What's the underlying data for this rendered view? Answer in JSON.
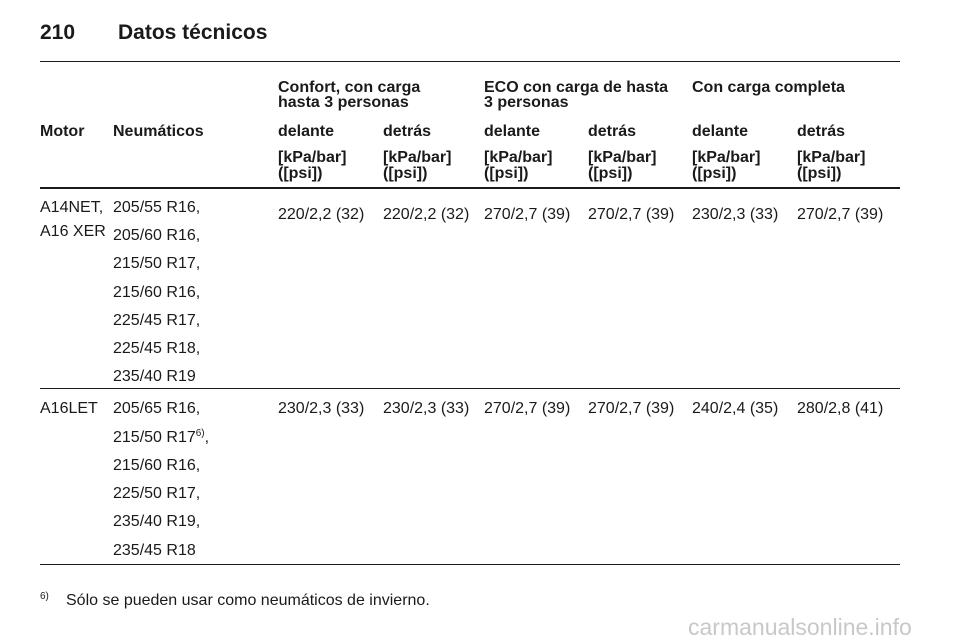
{
  "header": {
    "page_number": "210",
    "title": "Datos técnicos"
  },
  "table": {
    "group_headers": [
      "Confort, con carga hasta 3 personas",
      "ECO con carga de hasta 3 personas",
      "Con carga completa"
    ],
    "columns": [
      "Motor",
      "Neumáticos",
      "delante",
      "detrás",
      "delante",
      "detrás",
      "delante",
      "detrás"
    ],
    "units": [
      "[kPa/bar] ([psi])",
      "[kPa/bar] ([psi])",
      "[kPa/bar] ([psi])",
      "[kPa/bar] ([psi])",
      "[kPa/bar] ([psi])",
      "[kPa/bar] ([psi])"
    ],
    "rows": [
      {
        "motor": [
          "A14NET,",
          "A16 XER"
        ],
        "tires": [
          "205/55 R16,",
          "205/60 R16,",
          "215/50 R17,",
          "215/60 R16,",
          "225/45 R17,",
          "225/45 R18,",
          "235/40 R19"
        ],
        "pressures": [
          "220/2,2 (32)",
          "220/2,2 (32)",
          "270/2,7 (39)",
          "270/2,7 (39)",
          "230/2,3 (33)",
          "270/2,7 (39)"
        ]
      },
      {
        "motor": [
          "A16LET"
        ],
        "tires": [
          "205/65 R16,",
          {
            "text": "215/50 R17",
            "ref": "6)",
            "suffix": ","
          },
          "215/60 R16,",
          "225/50 R17,",
          "235/40 R19,",
          "235/45 R18"
        ],
        "pressures": [
          "230/2,3 (33)",
          "230/2,3 (33)",
          "270/2,7 (39)",
          "270/2,7 (39)",
          "240/2,4 (35)",
          "280/2,8 (41)"
        ]
      }
    ]
  },
  "footnote": {
    "ref": "6)",
    "text": "Sólo se pueden usar como neumáticos de invierno."
  },
  "watermark": "carmanualsonline.info"
}
